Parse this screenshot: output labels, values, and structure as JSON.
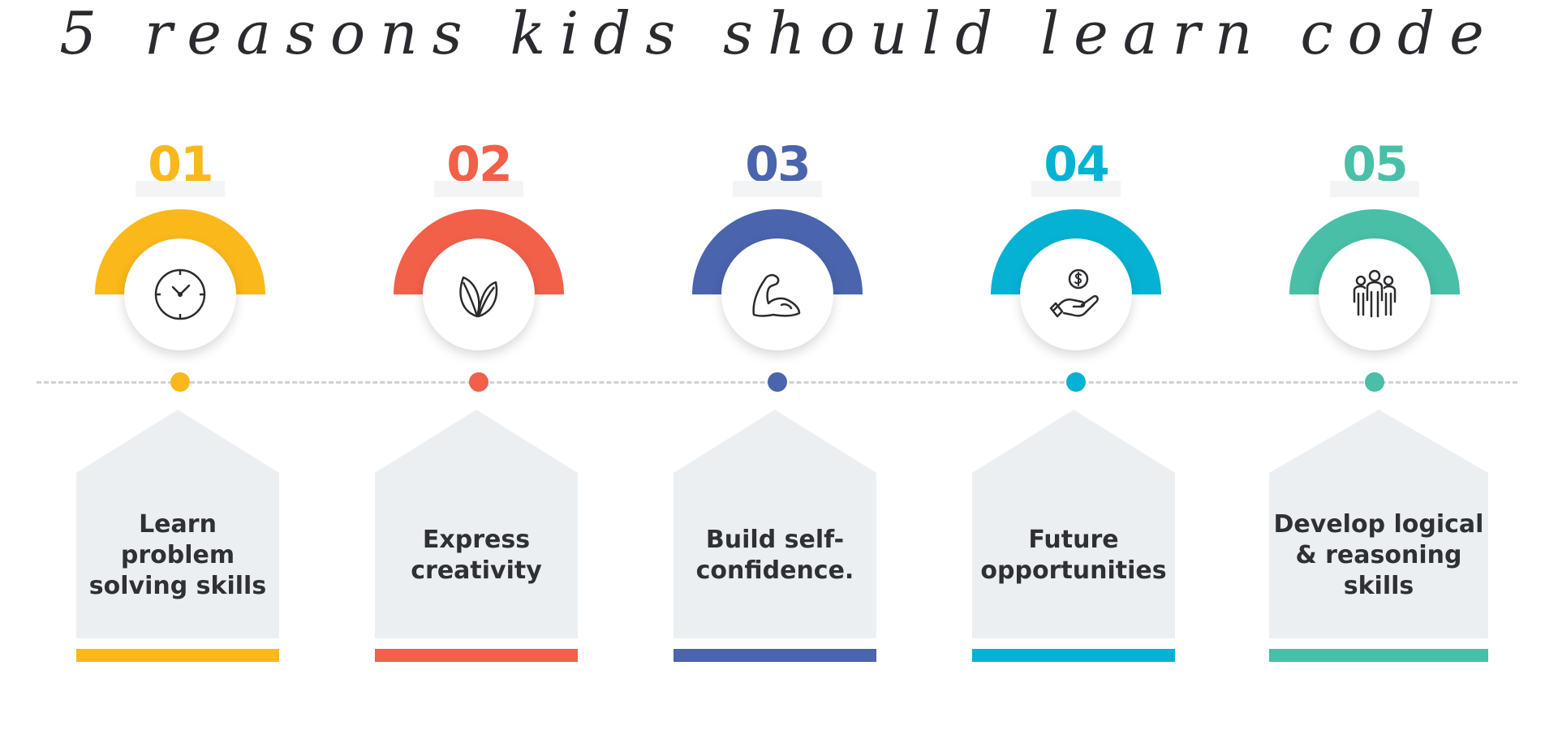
{
  "title": "5 reasons kids should learn code",
  "reasons": [
    {
      "number": "01",
      "label": "Learn\nproblem\nsolving skills",
      "color": "#fbb81b",
      "icon": "clock-icon"
    },
    {
      "number": "02",
      "label": "Express\ncreativity",
      "color": "#f2604a",
      "icon": "leaf-icon"
    },
    {
      "number": "03",
      "label": "Build self-\nconfidence.",
      "color": "#4a64ad",
      "icon": "flexed-arm-icon"
    },
    {
      "number": "04",
      "label": "Future\nopportunities",
      "color": "#06b2d3",
      "icon": "hand-coin-icon"
    },
    {
      "number": "05",
      "label": "Develop logical\n& reasoning\nskills",
      "color": "#48bfa6",
      "icon": "people-group-icon"
    }
  ],
  "colors": {
    "card_fill": "#eceff2",
    "timeline": "#d2d2d6",
    "text": "#2f3035"
  }
}
